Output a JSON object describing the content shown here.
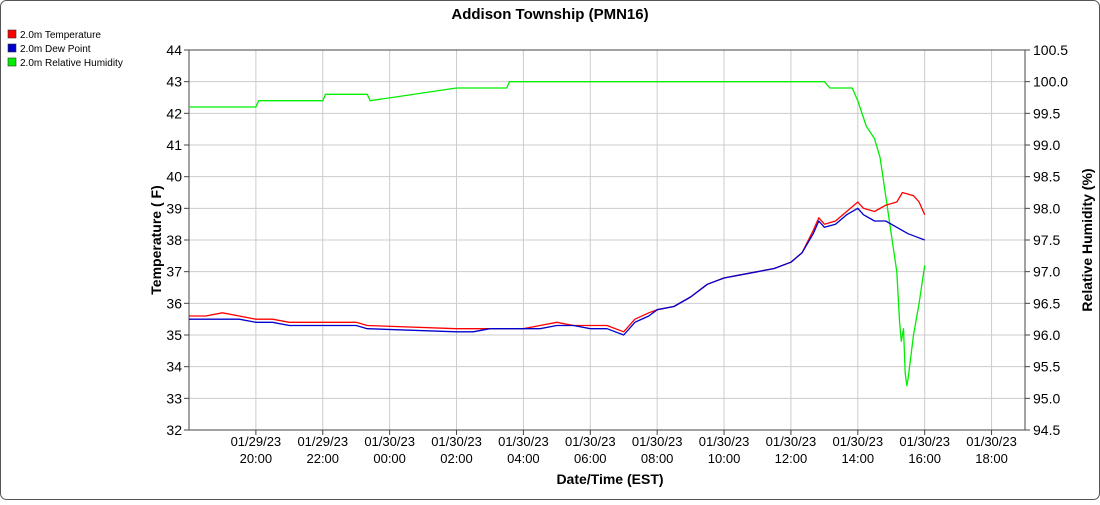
{
  "chart_data": {
    "type": "line",
    "title": "Addison Township (PMN16)",
    "xlabel": "Date/Time (EST)",
    "ylabel_left": "Temperature ( F)",
    "ylabel_right": "Relative Humidity (%)",
    "x_range": [
      "01/29/23 18:00",
      "01/30/23 19:00"
    ],
    "x_ticks": [
      {
        "t": "01/29/23 20:00",
        "date": "01/29/23",
        "time": "20:00"
      },
      {
        "t": "01/29/23 22:00",
        "date": "01/29/23",
        "time": "22:00"
      },
      {
        "t": "01/30/23 00:00",
        "date": "01/30/23",
        "time": "00:00"
      },
      {
        "t": "01/30/23 02:00",
        "date": "01/30/23",
        "time": "02:00"
      },
      {
        "t": "01/30/23 04:00",
        "date": "01/30/23",
        "time": "04:00"
      },
      {
        "t": "01/30/23 06:00",
        "date": "01/30/23",
        "time": "06:00"
      },
      {
        "t": "01/30/23 08:00",
        "date": "01/30/23",
        "time": "08:00"
      },
      {
        "t": "01/30/23 10:00",
        "date": "01/30/23",
        "time": "10:00"
      },
      {
        "t": "01/30/23 12:00",
        "date": "01/30/23",
        "time": "12:00"
      },
      {
        "t": "01/30/23 14:00",
        "date": "01/30/23",
        "time": "14:00"
      },
      {
        "t": "01/30/23 16:00",
        "date": "01/30/23",
        "time": "16:00"
      },
      {
        "t": "01/30/23 18:00",
        "date": "01/30/23",
        "time": "18:00"
      }
    ],
    "ylim_left": [
      32,
      44
    ],
    "ylim_right": [
      94.5,
      100.5
    ],
    "y_ticks_left": [
      "32",
      "33",
      "34",
      "35",
      "36",
      "37",
      "38",
      "39",
      "40",
      "41",
      "42",
      "43",
      "44"
    ],
    "y_ticks_right": [
      "94.5",
      "95.0",
      "95.5",
      "96.0",
      "96.5",
      "97.0",
      "97.5",
      "98.0",
      "98.5",
      "99.0",
      "99.5",
      "100.0",
      "100.5"
    ],
    "grid": true,
    "legend_position": "top-left",
    "series": [
      {
        "name": "2.0m Temperature",
        "axis": "left",
        "color": "#ff0000",
        "points": [
          [
            "01/29/23 18:00",
            35.6
          ],
          [
            "01/29/23 18:30",
            35.6
          ],
          [
            "01/29/23 19:00",
            35.7
          ],
          [
            "01/29/23 19:30",
            35.6
          ],
          [
            "01/29/23 20:00",
            35.5
          ],
          [
            "01/29/23 20:30",
            35.5
          ],
          [
            "01/29/23 21:00",
            35.4
          ],
          [
            "01/29/23 21:30",
            35.4
          ],
          [
            "01/29/23 22:00",
            35.4
          ],
          [
            "01/29/23 22:30",
            35.4
          ],
          [
            "01/29/23 23:00",
            35.4
          ],
          [
            "01/29/23 23:20",
            35.3
          ],
          [
            "01/30/23 02:00",
            35.2
          ],
          [
            "01/30/23 02:30",
            35.2
          ],
          [
            "01/30/23 03:00",
            35.2
          ],
          [
            "01/30/23 03:30",
            35.2
          ],
          [
            "01/30/23 04:00",
            35.2
          ],
          [
            "01/30/23 04:30",
            35.3
          ],
          [
            "01/30/23 05:00",
            35.4
          ],
          [
            "01/30/23 05:30",
            35.3
          ],
          [
            "01/30/23 06:00",
            35.3
          ],
          [
            "01/30/23 06:30",
            35.3
          ],
          [
            "01/30/23 07:00",
            35.1
          ],
          [
            "01/30/23 07:20",
            35.5
          ],
          [
            "01/30/23 07:45",
            35.7
          ],
          [
            "01/30/23 08:00",
            35.8
          ],
          [
            "01/30/23 08:30",
            35.9
          ],
          [
            "01/30/23 09:00",
            36.2
          ],
          [
            "01/30/23 09:30",
            36.6
          ],
          [
            "01/30/23 10:00",
            36.8
          ],
          [
            "01/30/23 10:30",
            36.9
          ],
          [
            "01/30/23 11:00",
            37.0
          ],
          [
            "01/30/23 11:30",
            37.1
          ],
          [
            "01/30/23 12:00",
            37.3
          ],
          [
            "01/30/23 12:20",
            37.6
          ],
          [
            "01/30/23 12:40",
            38.3
          ],
          [
            "01/30/23 12:50",
            38.7
          ],
          [
            "01/30/23 13:00",
            38.5
          ],
          [
            "01/30/23 13:20",
            38.6
          ],
          [
            "01/30/23 13:40",
            38.9
          ],
          [
            "01/30/23 14:00",
            39.2
          ],
          [
            "01/30/23 14:10",
            39.0
          ],
          [
            "01/30/23 14:30",
            38.9
          ],
          [
            "01/30/23 14:50",
            39.1
          ],
          [
            "01/30/23 15:10",
            39.2
          ],
          [
            "01/30/23 15:20",
            39.5
          ],
          [
            "01/30/23 15:40",
            39.4
          ],
          [
            "01/30/23 15:50",
            39.2
          ],
          [
            "01/30/23 16:00",
            38.8
          ]
        ]
      },
      {
        "name": "2.0m Dew Point",
        "axis": "left",
        "color": "#0000cc",
        "points": [
          [
            "01/29/23 18:00",
            35.5
          ],
          [
            "01/29/23 18:30",
            35.5
          ],
          [
            "01/29/23 19:00",
            35.5
          ],
          [
            "01/29/23 19:30",
            35.5
          ],
          [
            "01/29/23 20:00",
            35.4
          ],
          [
            "01/29/23 20:30",
            35.4
          ],
          [
            "01/29/23 21:00",
            35.3
          ],
          [
            "01/29/23 21:30",
            35.3
          ],
          [
            "01/29/23 22:00",
            35.3
          ],
          [
            "01/29/23 22:30",
            35.3
          ],
          [
            "01/29/23 23:00",
            35.3
          ],
          [
            "01/29/23 23:20",
            35.2
          ],
          [
            "01/30/23 02:00",
            35.1
          ],
          [
            "01/30/23 02:30",
            35.1
          ],
          [
            "01/30/23 03:00",
            35.2
          ],
          [
            "01/30/23 03:30",
            35.2
          ],
          [
            "01/30/23 04:00",
            35.2
          ],
          [
            "01/30/23 04:30",
            35.2
          ],
          [
            "01/30/23 05:00",
            35.3
          ],
          [
            "01/30/23 05:30",
            35.3
          ],
          [
            "01/30/23 06:00",
            35.2
          ],
          [
            "01/30/23 06:30",
            35.2
          ],
          [
            "01/30/23 07:00",
            35.0
          ],
          [
            "01/30/23 07:20",
            35.4
          ],
          [
            "01/30/23 07:45",
            35.6
          ],
          [
            "01/30/23 08:00",
            35.8
          ],
          [
            "01/30/23 08:30",
            35.9
          ],
          [
            "01/30/23 09:00",
            36.2
          ],
          [
            "01/30/23 09:30",
            36.6
          ],
          [
            "01/30/23 10:00",
            36.8
          ],
          [
            "01/30/23 10:30",
            36.9
          ],
          [
            "01/30/23 11:00",
            37.0
          ],
          [
            "01/30/23 11:30",
            37.1
          ],
          [
            "01/30/23 12:00",
            37.3
          ],
          [
            "01/30/23 12:20",
            37.6
          ],
          [
            "01/30/23 12:40",
            38.2
          ],
          [
            "01/30/23 12:50",
            38.6
          ],
          [
            "01/30/23 13:00",
            38.4
          ],
          [
            "01/30/23 13:20",
            38.5
          ],
          [
            "01/30/23 13:40",
            38.8
          ],
          [
            "01/30/23 14:00",
            39.0
          ],
          [
            "01/30/23 14:10",
            38.8
          ],
          [
            "01/30/23 14:30",
            38.6
          ],
          [
            "01/30/23 14:50",
            38.6
          ],
          [
            "01/30/23 15:10",
            38.4
          ],
          [
            "01/30/23 15:30",
            38.2
          ],
          [
            "01/30/23 15:45",
            38.1
          ],
          [
            "01/30/23 16:00",
            38.0
          ]
        ]
      },
      {
        "name": "2.0m Relative Humidity",
        "axis": "right",
        "color": "#00ee00",
        "points": [
          [
            "01/29/23 18:00",
            99.6
          ],
          [
            "01/29/23 20:00",
            99.6
          ],
          [
            "01/29/23 20:05",
            99.7
          ],
          [
            "01/29/23 22:00",
            99.7
          ],
          [
            "01/29/23 22:05",
            99.8
          ],
          [
            "01/29/23 23:20",
            99.8
          ],
          [
            "01/29/23 23:25",
            99.7
          ],
          [
            "01/30/23 02:00",
            99.9
          ],
          [
            "01/30/23 03:30",
            99.9
          ],
          [
            "01/30/23 03:35",
            100.0
          ],
          [
            "01/30/23 13:00",
            100.0
          ],
          [
            "01/30/23 13:10",
            99.9
          ],
          [
            "01/30/23 13:50",
            99.9
          ],
          [
            "01/30/23 14:00",
            99.7
          ],
          [
            "01/30/23 14:15",
            99.3
          ],
          [
            "01/30/23 14:30",
            99.1
          ],
          [
            "01/30/23 14:40",
            98.8
          ],
          [
            "01/30/23 14:50",
            98.2
          ],
          [
            "01/30/23 15:00",
            97.6
          ],
          [
            "01/30/23 15:10",
            97.0
          ],
          [
            "01/30/23 15:15",
            96.2
          ],
          [
            "01/30/23 15:18",
            95.9
          ],
          [
            "01/30/23 15:22",
            96.1
          ],
          [
            "01/30/23 15:25",
            95.4
          ],
          [
            "01/30/23 15:28",
            95.2
          ],
          [
            "01/30/23 15:30",
            95.3
          ],
          [
            "01/30/23 15:40",
            96.0
          ],
          [
            "01/30/23 15:50",
            96.5
          ],
          [
            "01/30/23 16:00",
            97.1
          ]
        ]
      }
    ]
  }
}
